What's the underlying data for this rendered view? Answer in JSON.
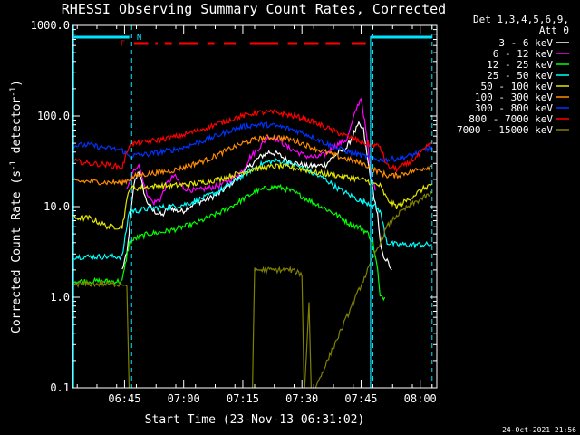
{
  "chart_data": {
    "type": "line",
    "title": "RHESSI Observing Summary Count Rates, Corrected",
    "xlabel": "Start Time (23-Nov-13 06:31:02)",
    "ylabel": "Corrected Count Rate (s",
    "ylabel_sup": "-1",
    "ylabel_mid": " detector",
    "ylabel_sup2": "-1",
    "ylabel_end": ")",
    "yscale": "log",
    "ylim": [
      0.1,
      1000
    ],
    "xlim_min": [
      6.53,
      8.07
    ],
    "x_units": "hours (UT)",
    "yticks": [
      {
        "v": 0.1,
        "label": "0.1"
      },
      {
        "v": 1,
        "label": "1.0"
      },
      {
        "v": 10,
        "label": "10.0"
      },
      {
        "v": 100,
        "label": "100.0"
      },
      {
        "v": 1000,
        "label": "1000.0"
      }
    ],
    "xticks": [
      {
        "t": 6.75,
        "label": "06:45"
      },
      {
        "t": 7.0,
        "label": "07:00"
      },
      {
        "t": 7.25,
        "label": "07:15"
      },
      {
        "t": 7.5,
        "label": "07:30"
      },
      {
        "t": 7.75,
        "label": "07:45"
      },
      {
        "t": 8.0,
        "label": "08:00"
      }
    ],
    "legend": {
      "header1": "Det 1,3,4,5,6,9,",
      "header2": "Att 0",
      "position": "right"
    },
    "vlines": [
      6.78,
      7.8,
      8.05
    ],
    "vline_color": "#00e5ff",
    "night_bars": [
      [
        6.53,
        6.77
      ],
      [
        7.79,
        8.05
      ]
    ],
    "night_label": "N",
    "flare_label": "F",
    "flare_segments": [
      [
        6.79,
        6.85
      ],
      [
        6.88,
        6.89
      ],
      [
        6.92,
        6.95
      ],
      [
        6.98,
        7.06
      ],
      [
        7.1,
        7.13
      ],
      [
        7.17,
        7.22
      ],
      [
        7.28,
        7.4
      ],
      [
        7.44,
        7.48
      ],
      [
        7.51,
        7.57
      ],
      [
        7.6,
        7.66
      ],
      [
        7.71,
        7.77
      ]
    ],
    "series": [
      {
        "name": "3 - 6 keV",
        "color": "#ffffff",
        "t": [
          6.74,
          6.75,
          6.76,
          6.79,
          6.81,
          6.84,
          6.87,
          6.91,
          6.94,
          6.97,
          7.0,
          7.05,
          7.1,
          7.15,
          7.2,
          7.24,
          7.28,
          7.32,
          7.36,
          7.4,
          7.44,
          7.48,
          7.52,
          7.56,
          7.6,
          7.63,
          7.66,
          7.69,
          7.72,
          7.74,
          7.76,
          7.78,
          7.8,
          7.82,
          7.83,
          7.84,
          7.86,
          7.88
        ],
        "y": [
          2,
          2.5,
          3,
          18,
          25,
          12,
          9,
          8,
          10,
          9,
          9,
          11,
          12,
          14,
          18,
          22,
          28,
          35,
          40,
          38,
          32,
          30,
          28,
          28,
          29,
          35,
          40,
          45,
          65,
          80,
          70,
          30,
          15,
          8,
          4,
          3,
          2.5,
          2
        ]
      },
      {
        "name": "6 - 12 keV",
        "color": "#ff00ff",
        "t": [
          6.76,
          6.79,
          6.81,
          6.84,
          6.87,
          6.9,
          6.93,
          6.96,
          7.0,
          7.05,
          7.1,
          7.15,
          7.2,
          7.25,
          7.28,
          7.32,
          7.36,
          7.4,
          7.44,
          7.48,
          7.52,
          7.56,
          7.6,
          7.63,
          7.66,
          7.69,
          7.71,
          7.73,
          7.75,
          7.77,
          7.79,
          7.81
        ],
        "y": [
          15,
          25,
          30,
          15,
          11,
          12,
          18,
          22,
          16,
          15,
          16,
          17,
          20,
          25,
          35,
          45,
          60,
          55,
          45,
          40,
          36,
          35,
          38,
          45,
          50,
          55,
          80,
          120,
          160,
          70,
          25,
          15
        ]
      },
      {
        "name": "12 - 25 keV",
        "color": "#00ff00",
        "t": [
          6.53,
          6.6,
          6.68,
          6.74,
          6.77,
          6.8,
          6.85,
          6.9,
          6.95,
          7.0,
          7.05,
          7.1,
          7.15,
          7.2,
          7.25,
          7.3,
          7.35,
          7.4,
          7.45,
          7.5,
          7.55,
          7.6,
          7.65,
          7.7,
          7.75,
          7.78,
          7.8,
          7.82,
          7.83,
          7.85
        ],
        "y": [
          1.5,
          1.5,
          1.5,
          1.5,
          4,
          4.5,
          5,
          5.2,
          5.5,
          6,
          6.5,
          7.5,
          8.5,
          10,
          12,
          14.5,
          16,
          16.5,
          15,
          13,
          11,
          9.5,
          8,
          6.5,
          5.8,
          5,
          4,
          2,
          1,
          1
        ]
      },
      {
        "name": "25 - 50 keV",
        "color": "#00ffff",
        "t": [
          6.53,
          6.6,
          6.68,
          6.74,
          6.77,
          6.8,
          6.85,
          6.9,
          6.95,
          7.0,
          7.05,
          7.1,
          7.15,
          7.2,
          7.25,
          7.3,
          7.35,
          7.4,
          7.45,
          7.5,
          7.55,
          7.6,
          7.65,
          7.7,
          7.75,
          7.78,
          7.8,
          7.83,
          7.86,
          7.9,
          7.95,
          8.0,
          8.05
        ],
        "y": [
          2.8,
          2.8,
          2.8,
          2.8,
          9,
          9,
          9.5,
          9.8,
          10,
          10.5,
          11.5,
          13,
          15,
          18,
          22,
          27,
          31,
          32,
          30,
          27,
          23,
          20,
          16,
          13.5,
          11.5,
          11,
          10.5,
          9,
          4,
          3.8,
          3.8,
          3.8,
          3.8
        ]
      },
      {
        "name": "50 - 100 keV",
        "color": "#e6e600",
        "t": [
          6.53,
          6.6,
          6.68,
          6.74,
          6.77,
          6.8,
          6.85,
          6.9,
          6.95,
          7.0,
          7.05,
          7.1,
          7.15,
          7.2,
          7.25,
          7.3,
          7.35,
          7.4,
          7.45,
          7.5,
          7.55,
          7.6,
          7.65,
          7.7,
          7.75,
          7.78,
          7.8,
          7.83,
          7.86,
          7.9,
          7.95,
          8.0,
          8.05
        ],
        "y": [
          7.5,
          7.5,
          6,
          6,
          16,
          16,
          16.5,
          17,
          17,
          17.5,
          18,
          19,
          20,
          22,
          24,
          26,
          27,
          28,
          27,
          26,
          24,
          23,
          22,
          21,
          20,
          19,
          18,
          17,
          12,
          10,
          12,
          15,
          18
        ]
      },
      {
        "name": "100 - 300 keV",
        "color": "#ff8c00",
        "t": [
          6.53,
          6.6,
          6.68,
          6.74,
          6.77,
          6.8,
          6.85,
          6.9,
          6.95,
          7.0,
          7.05,
          7.1,
          7.15,
          7.2,
          7.25,
          7.3,
          7.35,
          7.4,
          7.45,
          7.5,
          7.55,
          7.6,
          7.65,
          7.7,
          7.75,
          7.78,
          7.8,
          7.83,
          7.86,
          7.9,
          7.95,
          8.0,
          8.05
        ],
        "y": [
          19,
          19,
          18.5,
          18.5,
          20,
          22,
          23,
          24,
          25,
          27,
          30,
          33,
          38,
          44,
          50,
          55,
          58,
          58,
          55,
          50,
          44,
          40,
          36,
          33,
          30,
          28,
          26,
          24,
          22,
          22,
          24,
          26,
          28
        ]
      },
      {
        "name": "300 - 800 keV",
        "color": "#0033ff",
        "t": [
          6.53,
          6.6,
          6.68,
          6.74,
          6.77,
          6.8,
          6.85,
          6.9,
          6.95,
          7.0,
          7.05,
          7.1,
          7.15,
          7.2,
          7.25,
          7.3,
          7.35,
          7.4,
          7.45,
          7.5,
          7.55,
          7.6,
          7.65,
          7.7,
          7.75,
          7.78,
          7.8,
          7.83,
          7.86,
          7.9,
          7.95,
          8.0,
          8.05
        ],
        "y": [
          47,
          48,
          44,
          42,
          36,
          37,
          38,
          40,
          42,
          45,
          50,
          55,
          62,
          70,
          76,
          80,
          80,
          77,
          72,
          66,
          58,
          50,
          44,
          40,
          37,
          35,
          34,
          33,
          33,
          34,
          36,
          40,
          46
        ]
      },
      {
        "name": "800 - 7000 keV",
        "color": "#ff0000",
        "t": [
          6.53,
          6.6,
          6.68,
          6.74,
          6.77,
          6.8,
          6.85,
          6.9,
          6.95,
          7.0,
          7.05,
          7.1,
          7.15,
          7.2,
          7.25,
          7.3,
          7.35,
          7.4,
          7.45,
          7.5,
          7.55,
          7.6,
          7.65,
          7.7,
          7.75,
          7.78,
          7.8,
          7.83,
          7.86,
          7.9,
          7.95,
          8.0,
          8.05
        ],
        "y": [
          32,
          30,
          29,
          27,
          48,
          50,
          52,
          55,
          58,
          62,
          68,
          75,
          83,
          92,
          100,
          108,
          110,
          108,
          102,
          95,
          85,
          75,
          66,
          58,
          52,
          49,
          48,
          46,
          28,
          26,
          30,
          38,
          52
        ]
      },
      {
        "name": "7000 - 15000 keV",
        "color": "#808000",
        "t": [
          6.53,
          6.6,
          6.68,
          6.74,
          6.76,
          6.77,
          7.29,
          7.3,
          7.35,
          7.4,
          7.45,
          7.5,
          7.51,
          7.53,
          7.54,
          7.86,
          7.9,
          7.95,
          8.0,
          8.05
        ],
        "y": [
          1.4,
          1.4,
          1.4,
          1.4,
          1.4,
          0.08,
          0.08,
          2,
          2,
          2,
          2,
          1.8,
          0.08,
          0.9,
          0.08,
          6,
          8,
          10,
          12,
          14
        ]
      }
    ]
  },
  "footer_date": "24-Oct-2021 21:56"
}
